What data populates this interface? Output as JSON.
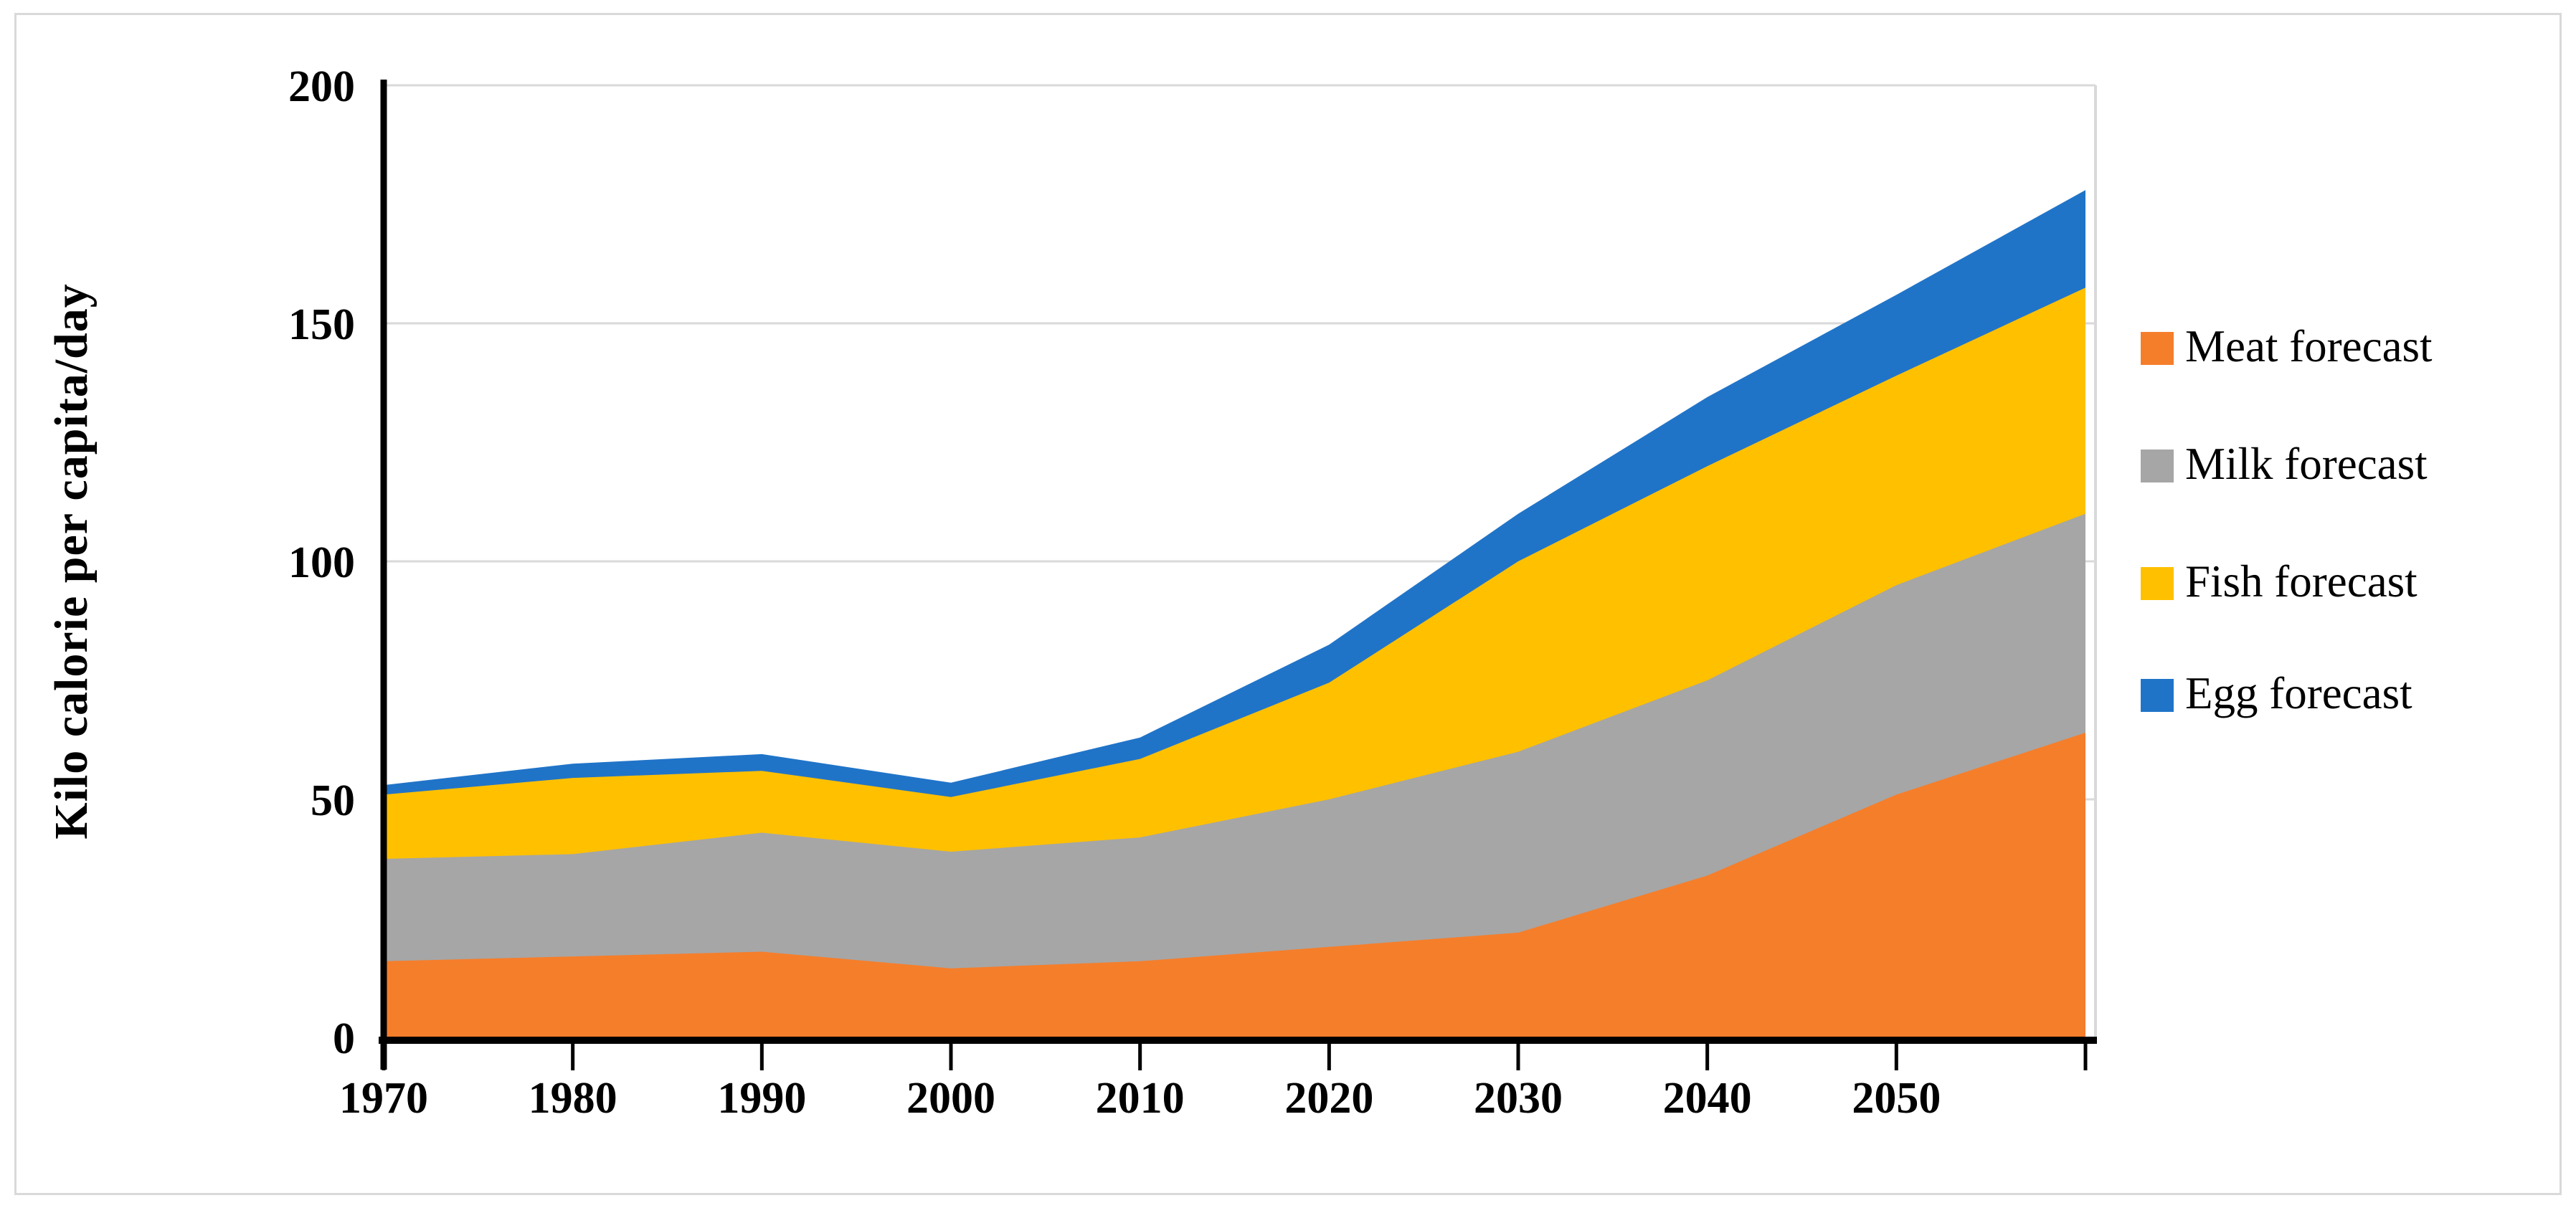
{
  "figure": {
    "background": "#FFFFFF",
    "border_color": "#D9D9D9"
  },
  "chart_data": {
    "type": "area",
    "stacked": true,
    "title": "",
    "xlabel": "",
    "ylabel": "Kilo calorie per capita/day",
    "ylim": [
      0,
      200
    ],
    "xlim": [
      1970,
      2060
    ],
    "y_ticks": [
      0,
      50,
      100,
      150,
      200
    ],
    "x": [
      1970,
      1980,
      1990,
      2000,
      2010,
      2020,
      2030,
      2040,
      2050,
      2060
    ],
    "x_tick_labels": [
      "1970",
      "1980",
      "1990",
      "2000",
      "2010",
      "2020",
      "2030",
      "2040",
      "2050",
      ""
    ],
    "grid": "horizontal",
    "gridline_color": "#D9D9D9",
    "plot_right_border_color": "#D9D9D9",
    "axis_color": "#000000",
    "legend_position": "right",
    "series": [
      {
        "name": "Meat forecast",
        "color": "#F57E2B",
        "values": [
          16,
          17,
          18,
          14.5,
          16,
          19,
          22,
          34,
          51,
          64
        ]
      },
      {
        "name": "Milk forecast",
        "color": "#A6A6A6",
        "values": [
          21.5,
          21.5,
          25,
          24.5,
          26,
          31,
          38,
          41,
          44,
          46
        ]
      },
      {
        "name": "Fish forecast",
        "color": "#FFC000",
        "values": [
          13.5,
          16,
          13,
          11.5,
          16.5,
          24.5,
          40,
          45,
          44,
          47.5
        ]
      },
      {
        "name": "Egg forecast",
        "color": "#2074C8",
        "values": [
          2,
          3,
          3.5,
          3,
          4.5,
          8,
          10,
          14.5,
          17,
          20.5
        ]
      }
    ]
  }
}
